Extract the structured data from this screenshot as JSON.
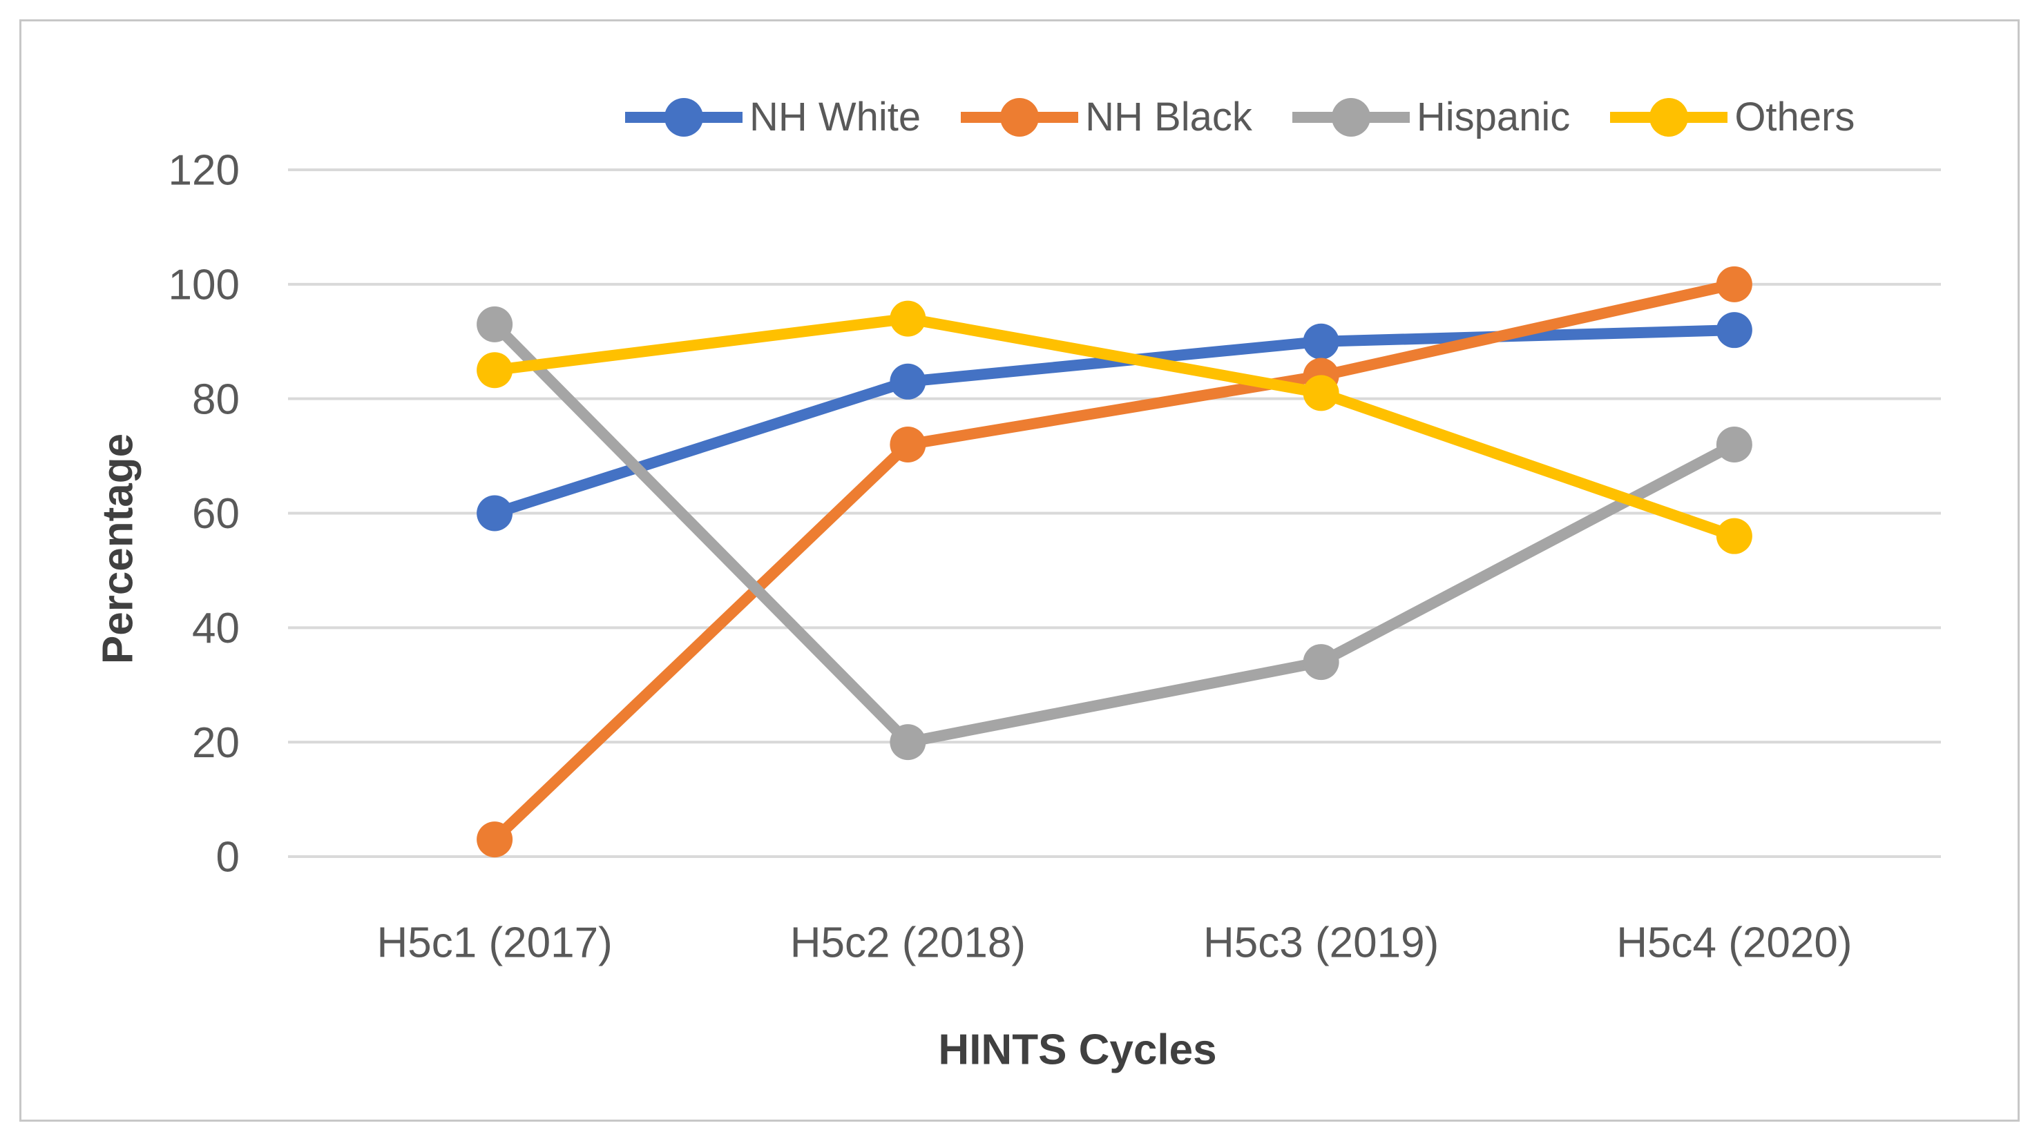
{
  "figure": {
    "background": "#FFFFFF",
    "border_color": "#C7C7C7"
  },
  "chart_data": {
    "type": "line",
    "title": "",
    "categories": [
      "H5c1 (2017)",
      "H5c2 (2018)",
      "H5c3 (2019)",
      "H5c4 (2020)"
    ],
    "series": [
      {
        "name": "NH White",
        "color": "#4472C4",
        "values": [
          60,
          83,
          90,
          92
        ]
      },
      {
        "name": "NH Black",
        "color": "#ED7D31",
        "values": [
          3,
          72,
          84,
          100
        ]
      },
      {
        "name": "Hispanic",
        "color": "#A5A5A5",
        "values": [
          93,
          20,
          34,
          72
        ]
      },
      {
        "name": "Others",
        "color": "#FFC000",
        "values": [
          85,
          94,
          81,
          56
        ]
      }
    ],
    "xlabel": "HINTS Cycles",
    "ylabel": "Percentage",
    "ylim": [
      0,
      120
    ],
    "ytick_step": 20,
    "yticks": [
      0,
      20,
      40,
      60,
      80,
      100,
      120
    ],
    "grid": true,
    "legend_position": "top",
    "marker": "circle",
    "colors": {
      "gridline": "#D9D9D9",
      "tick_label": "#595959",
      "axis_title": "#404040"
    }
  }
}
